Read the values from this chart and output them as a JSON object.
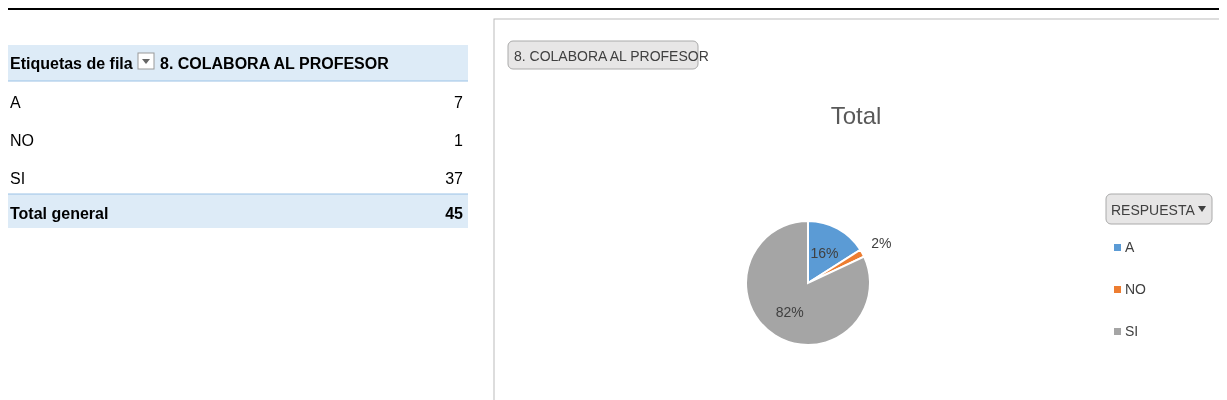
{
  "chart_data": [
    {
      "type": "other",
      "categories": [
        "A",
        "NO",
        "SI"
      ],
      "values": [
        7,
        1,
        37
      ],
      "data_labels": true,
      "totals": [
        "45"
      ],
      "annotations": [
        "Etiquetas de fila",
        "8. COLABORA AL PROFESOR",
        "Total general"
      ]
    },
    {
      "type": "pie",
      "title": "Total",
      "legend_title": "RESPUESTA",
      "categories": [
        "A",
        "NO",
        "SI"
      ],
      "values": [
        16,
        2,
        82
      ],
      "value_labels": [
        "16%",
        "2%",
        "82%"
      ],
      "colors": [
        "#5b9bd5",
        "#ed7d31",
        "#a5a5a5"
      ],
      "legend": "right",
      "annotations": [
        "8. COLABORA AL PROFESOR"
      ]
    }
  ]
}
